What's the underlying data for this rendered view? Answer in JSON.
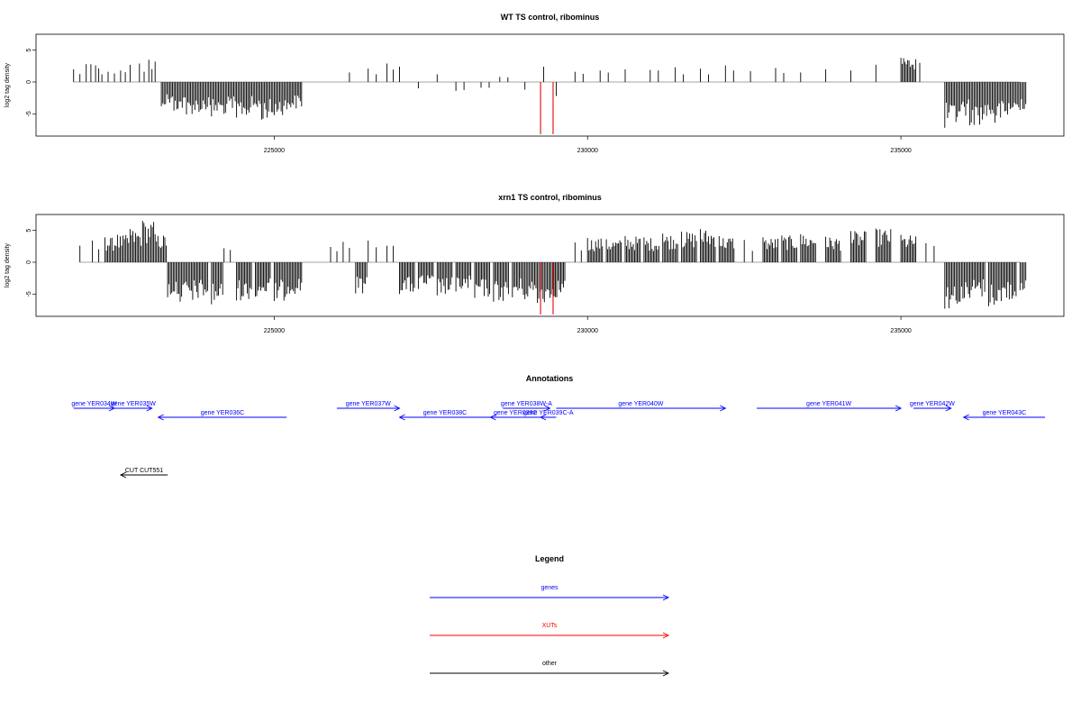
{
  "chart_data": [
    {
      "type": "bar",
      "title": "WT TS control, ribominus",
      "ylabel": "log2 tag density",
      "xlim": [
        221200,
        237600
      ],
      "ylim": [
        -8.5,
        7.5
      ],
      "xticks": [
        225000,
        230000,
        235000
      ],
      "xtick_labels": [
        "225000",
        "230000",
        "235000"
      ],
      "yticks": [
        5,
        0,
        -5
      ],
      "ytick_labels": [
        "5",
        "0",
        "-5"
      ],
      "baseline": 0,
      "bar_color": "#000000",
      "highlight_color": "#e31a1c",
      "series": [
        {
          "values": [
            [
              221800,
              2.0
            ],
            [
              222000,
              2.8
            ],
            [
              222150,
              2.6
            ],
            [
              222250,
              1.2
            ],
            [
              222350,
              1.6
            ],
            [
              222550,
              1.8
            ],
            [
              222700,
              2.7
            ],
            [
              222850,
              2.9
            ],
            [
              223000,
              3.5
            ],
            [
              223100,
              3.2
            ],
            [
              223200,
              -3.8
            ],
            [
              223400,
              -4.5
            ],
            [
              223600,
              -5.1
            ],
            [
              223800,
              -4.7
            ],
            [
              224000,
              -5.4
            ],
            [
              224200,
              -5.0
            ],
            [
              224400,
              -5.6
            ],
            [
              224600,
              -4.8
            ],
            [
              224800,
              -5.9
            ],
            [
              225000,
              -5.2
            ],
            [
              225200,
              -4.3
            ],
            [
              226200,
              1.5
            ],
            [
              226500,
              2.1
            ],
            [
              226800,
              2.9
            ],
            [
              227000,
              2.4
            ],
            [
              227300,
              -1.0
            ],
            [
              227600,
              1.2
            ],
            [
              227900,
              -1.4
            ],
            [
              228300,
              -0.9
            ],
            [
              228600,
              0.8
            ],
            [
              229000,
              -1.2
            ],
            [
              229300,
              2.4
            ],
            [
              229500,
              -2.2
            ],
            [
              229800,
              1.6
            ],
            [
              230200,
              1.8
            ],
            [
              230600,
              2.0
            ],
            [
              231000,
              1.9
            ],
            [
              231400,
              2.3
            ],
            [
              231800,
              2.1
            ],
            [
              232200,
              2.6
            ],
            [
              232600,
              1.7
            ],
            [
              233000,
              2.2
            ],
            [
              233400,
              1.5
            ],
            [
              233800,
              2.0
            ],
            [
              234200,
              1.8
            ],
            [
              234600,
              2.7
            ],
            [
              235000,
              3.8
            ],
            [
              235300,
              3.0
            ],
            [
              235700,
              -7.2
            ],
            [
              235900,
              -5.5
            ],
            [
              236100,
              -6.8
            ],
            [
              236300,
              -5.9
            ],
            [
              236500,
              -6.4
            ],
            [
              236700,
              -5.1
            ],
            [
              236900,
              -4.4
            ]
          ]
        },
        {
          "name": "XUTs",
          "values": [
            [
              229250,
              -8.2
            ],
            [
              229450,
              -8.2
            ]
          ]
        }
      ]
    },
    {
      "type": "bar",
      "title": "xrn1 TS control, ribominus",
      "ylabel": "log2 tag density",
      "xlim": [
        221200,
        237600
      ],
      "ylim": [
        -8.5,
        7.5
      ],
      "xticks": [
        225000,
        230000,
        235000
      ],
      "xtick_labels": [
        "225000",
        "230000",
        "235000"
      ],
      "yticks": [
        5,
        0,
        -5
      ],
      "ytick_labels": [
        "5",
        "0",
        "-5"
      ],
      "baseline": 0,
      "bar_color": "#000000",
      "highlight_color": "#e31a1c",
      "series": [
        {
          "values": [
            [
              221900,
              2.6
            ],
            [
              222100,
              3.4
            ],
            [
              222300,
              3.9
            ],
            [
              222500,
              4.3
            ],
            [
              222700,
              5.2
            ],
            [
              222900,
              6.5
            ],
            [
              223100,
              4.4
            ],
            [
              223300,
              -5.5
            ],
            [
              223500,
              -6.2
            ],
            [
              223700,
              -5.9
            ],
            [
              224000,
              -6.6
            ],
            [
              224200,
              2.2
            ],
            [
              224400,
              -6.0
            ],
            [
              224700,
              -5.4
            ],
            [
              225000,
              -6.1
            ],
            [
              225200,
              -5.0
            ],
            [
              225900,
              2.4
            ],
            [
              226100,
              3.2
            ],
            [
              226300,
              -4.9
            ],
            [
              226500,
              3.4
            ],
            [
              226800,
              2.6
            ],
            [
              227000,
              -5.0
            ],
            [
              227300,
              -4.2
            ],
            [
              227600,
              -5.2
            ],
            [
              227900,
              -4.6
            ],
            [
              228200,
              -5.6
            ],
            [
              228500,
              -6.2
            ],
            [
              228800,
              -5.5
            ],
            [
              229000,
              -5.8
            ],
            [
              229200,
              -6.4
            ],
            [
              229400,
              -5.6
            ],
            [
              229800,
              3.1
            ],
            [
              230000,
              3.8
            ],
            [
              230300,
              3.6
            ],
            [
              230600,
              4.1
            ],
            [
              230900,
              3.9
            ],
            [
              231200,
              4.5
            ],
            [
              231500,
              4.8
            ],
            [
              231800,
              5.2
            ],
            [
              232100,
              4.1
            ],
            [
              232500,
              3.5
            ],
            [
              232800,
              3.9
            ],
            [
              233100,
              4.2
            ],
            [
              233400,
              4.4
            ],
            [
              233800,
              4.0
            ],
            [
              234200,
              4.9
            ],
            [
              234600,
              5.3
            ],
            [
              235000,
              4.3
            ],
            [
              235400,
              3.0
            ],
            [
              235700,
              -7.3
            ],
            [
              235900,
              -6.5
            ],
            [
              236100,
              -5.6
            ],
            [
              236400,
              -6.9
            ],
            [
              236600,
              -6.1
            ],
            [
              236900,
              -4.4
            ]
          ]
        },
        {
          "name": "XUTs",
          "values": [
            [
              229250,
              -8.2
            ],
            [
              229450,
              -8.2
            ]
          ]
        }
      ]
    },
    {
      "type": "other",
      "title": "Annotations",
      "xlim": [
        221200,
        237600
      ],
      "features": [
        {
          "label": "gene YER034W",
          "start": 221800,
          "end": 222450,
          "strand": "+",
          "class": "genes",
          "row": 0
        },
        {
          "label": "gene YER035W",
          "start": 222450,
          "end": 223050,
          "strand": "+",
          "class": "genes",
          "row": 0
        },
        {
          "label": "gene YER036C",
          "start": 223150,
          "end": 225200,
          "strand": "-",
          "class": "genes",
          "row": 1
        },
        {
          "label": "gene YER037W",
          "start": 226000,
          "end": 227000,
          "strand": "+",
          "class": "genes",
          "row": 0
        },
        {
          "label": "gene YER038C",
          "start": 227000,
          "end": 228450,
          "strand": "-",
          "class": "genes",
          "row": 1
        },
        {
          "label": "gene YER038W-A",
          "start": 228650,
          "end": 229400,
          "strand": "+",
          "class": "genes",
          "row": 0
        },
        {
          "label": "gene YER039C",
          "start": 228450,
          "end": 229250,
          "strand": "-",
          "class": "genes",
          "row": 1
        },
        {
          "label": "gene YER039C-A",
          "start": 229250,
          "end": 229500,
          "strand": "-",
          "class": "genes",
          "row": 1
        },
        {
          "label": "gene YER040W",
          "start": 229500,
          "end": 232200,
          "strand": "+",
          "class": "genes",
          "row": 0
        },
        {
          "label": "gene YER041W",
          "start": 232700,
          "end": 235000,
          "strand": "+",
          "class": "genes",
          "row": 0
        },
        {
          "label": "gene YER042W",
          "start": 235200,
          "end": 235800,
          "strand": "+",
          "class": "genes",
          "row": 0
        },
        {
          "label": "gene YER043C",
          "start": 236000,
          "end": 237300,
          "strand": "-",
          "class": "genes",
          "row": 1
        },
        {
          "label": "CUT CUT551",
          "start": 222550,
          "end": 223300,
          "strand": "-",
          "class": "other",
          "row": 3
        }
      ]
    },
    {
      "type": "other",
      "title": "Legend",
      "entries": [
        {
          "name": "genes",
          "color": "#0000ff"
        },
        {
          "name": "XUTs",
          "color": "#ff0000"
        },
        {
          "name": "other",
          "color": "#000000"
        }
      ]
    }
  ]
}
